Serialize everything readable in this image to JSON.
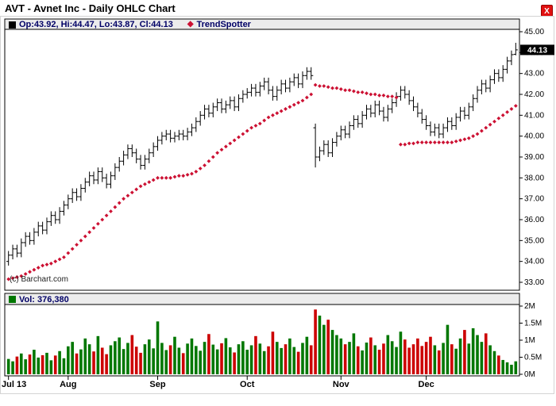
{
  "title": "AVT - Avnet Inc - Daily OHLC Chart",
  "close_button": "X",
  "legend": {
    "ohlc_label": "Op:43.92, Hi:44.47, Lo:43.87, Cl:44.13",
    "trend_label": "TrendSpotter",
    "diamond_glyph": "◆"
  },
  "volume_legend": {
    "label": "Vol: 376,380"
  },
  "copyright": "(c) Barchart.com",
  "colors": {
    "ohlc": "#000000",
    "trend": "#cc1133",
    "volume_up": "#007700",
    "volume_down": "#cc0000",
    "legend_text": "#000066",
    "last_price_bg": "#000000",
    "last_price_fg": "#ffffff",
    "close_button_bg": "#e01010"
  },
  "chart_data": {
    "type": "ohlc",
    "title": "AVT - Avnet Inc - Daily OHLC Chart",
    "y_axis": {
      "min": 33,
      "max": 45,
      "tick_step": 1,
      "tick_labels": [
        "45.00",
        "44.00",
        "43.00",
        "42.00",
        "41.00",
        "40.00",
        "39.00",
        "38.00",
        "37.00",
        "36.00",
        "35.00",
        "34.00",
        "33.00"
      ],
      "last_price": 44.13,
      "last_price_label": "44.13"
    },
    "volume_axis": {
      "max_millions": 2,
      "tick_values_millions": [
        2,
        1.5,
        1,
        0.5,
        0
      ],
      "tick_labels": [
        "2M",
        "1.5M",
        "1M",
        "0.5M",
        "0M"
      ]
    },
    "x_ticks": [
      {
        "label": "Jul 13",
        "index": 0
      },
      {
        "label": "Aug",
        "index": 14
      },
      {
        "label": "Sep",
        "index": 35
      },
      {
        "label": "Oct",
        "index": 56
      },
      {
        "label": "Nov",
        "index": 78
      },
      {
        "label": "Dec",
        "index": 98
      }
    ],
    "series": [
      {
        "name": "OHLC",
        "type": "ohlc",
        "bars_ohlc": [
          [
            34.0,
            34.5,
            33.8,
            34.3
          ],
          [
            34.3,
            34.8,
            34.1,
            34.6
          ],
          [
            34.6,
            34.8,
            34.2,
            34.4
          ],
          [
            34.4,
            35.1,
            34.2,
            34.9
          ],
          [
            34.9,
            35.4,
            34.7,
            35.2
          ],
          [
            35.2,
            35.4,
            34.8,
            35.0
          ],
          [
            35.0,
            35.6,
            34.8,
            35.4
          ],
          [
            35.4,
            35.9,
            35.2,
            35.7
          ],
          [
            35.7,
            35.9,
            35.3,
            35.5
          ],
          [
            35.5,
            36.1,
            35.3,
            35.9
          ],
          [
            35.9,
            36.4,
            35.7,
            36.2
          ],
          [
            36.2,
            36.4,
            35.8,
            36.0
          ],
          [
            36.0,
            36.6,
            35.8,
            36.4
          ],
          [
            36.4,
            36.9,
            36.2,
            36.7
          ],
          [
            36.7,
            37.2,
            36.5,
            37.0
          ],
          [
            37.0,
            37.5,
            36.8,
            37.3
          ],
          [
            37.3,
            37.5,
            36.9,
            37.1
          ],
          [
            37.1,
            37.7,
            36.9,
            37.5
          ],
          [
            37.5,
            38.0,
            37.3,
            37.8
          ],
          [
            37.8,
            38.3,
            37.6,
            38.1
          ],
          [
            38.1,
            38.3,
            37.7,
            37.9
          ],
          [
            37.9,
            38.5,
            37.7,
            38.3
          ],
          [
            38.3,
            38.5,
            37.8,
            38.0
          ],
          [
            38.0,
            38.2,
            37.5,
            37.7
          ],
          [
            37.7,
            38.3,
            37.5,
            38.1
          ],
          [
            38.1,
            38.7,
            37.9,
            38.5
          ],
          [
            38.5,
            39.0,
            38.3,
            38.8
          ],
          [
            38.8,
            39.3,
            38.6,
            39.1
          ],
          [
            39.1,
            39.6,
            38.9,
            39.4
          ],
          [
            39.4,
            39.6,
            39.0,
            39.2
          ],
          [
            39.2,
            39.4,
            38.7,
            38.9
          ],
          [
            38.9,
            39.1,
            38.4,
            38.6
          ],
          [
            38.6,
            39.1,
            38.4,
            38.9
          ],
          [
            38.9,
            39.4,
            38.7,
            39.2
          ],
          [
            39.2,
            39.7,
            39.0,
            39.5
          ],
          [
            39.5,
            40.0,
            39.3,
            39.8
          ],
          [
            39.8,
            40.2,
            39.6,
            40.0
          ],
          [
            40.0,
            40.3,
            39.8,
            40.1
          ],
          [
            40.1,
            40.3,
            39.7,
            39.9
          ],
          [
            39.9,
            40.2,
            39.7,
            40.0
          ],
          [
            40.0,
            40.3,
            39.8,
            40.1
          ],
          [
            40.1,
            40.3,
            39.8,
            40.0
          ],
          [
            40.0,
            40.4,
            39.8,
            40.2
          ],
          [
            40.2,
            40.6,
            40.0,
            40.4
          ],
          [
            40.4,
            40.9,
            40.2,
            40.7
          ],
          [
            40.7,
            41.2,
            40.5,
            41.0
          ],
          [
            41.0,
            41.5,
            40.8,
            41.3
          ],
          [
            41.3,
            41.5,
            40.9,
            41.1
          ],
          [
            41.1,
            41.6,
            40.9,
            41.4
          ],
          [
            41.4,
            41.8,
            41.2,
            41.6
          ],
          [
            41.6,
            41.8,
            41.1,
            41.3
          ],
          [
            41.3,
            41.7,
            41.1,
            41.5
          ],
          [
            41.5,
            41.9,
            41.3,
            41.7
          ],
          [
            41.7,
            41.9,
            41.2,
            41.4
          ],
          [
            41.4,
            42.0,
            41.2,
            41.8
          ],
          [
            41.8,
            42.2,
            41.6,
            42.0
          ],
          [
            42.0,
            42.3,
            41.8,
            42.1
          ],
          [
            42.1,
            42.5,
            41.9,
            42.3
          ],
          [
            42.3,
            42.5,
            41.9,
            42.1
          ],
          [
            42.1,
            42.6,
            41.9,
            42.4
          ],
          [
            42.4,
            42.8,
            42.2,
            42.6
          ],
          [
            42.6,
            42.8,
            42.0,
            42.2
          ],
          [
            42.2,
            42.4,
            41.7,
            41.9
          ],
          [
            41.9,
            42.4,
            41.7,
            42.2
          ],
          [
            42.2,
            42.7,
            42.0,
            42.5
          ],
          [
            42.5,
            42.7,
            42.1,
            42.3
          ],
          [
            42.3,
            42.8,
            42.1,
            42.6
          ],
          [
            42.6,
            43.0,
            42.4,
            42.8
          ],
          [
            42.8,
            43.0,
            42.3,
            42.5
          ],
          [
            42.5,
            43.1,
            42.3,
            42.9
          ],
          [
            42.9,
            43.3,
            42.7,
            43.1
          ],
          [
            43.1,
            43.3,
            42.7,
            42.9
          ],
          [
            40.4,
            40.6,
            38.5,
            39.0
          ],
          [
            39.0,
            39.5,
            38.8,
            39.3
          ],
          [
            39.3,
            39.8,
            39.1,
            39.6
          ],
          [
            39.6,
            39.8,
            39.0,
            39.2
          ],
          [
            39.2,
            39.9,
            39.0,
            39.7
          ],
          [
            39.7,
            40.2,
            39.5,
            40.0
          ],
          [
            40.0,
            40.5,
            39.8,
            40.3
          ],
          [
            40.3,
            40.5,
            39.9,
            40.1
          ],
          [
            40.1,
            40.7,
            39.9,
            40.5
          ],
          [
            40.5,
            41.0,
            40.3,
            40.8
          ],
          [
            40.8,
            41.0,
            40.4,
            40.6
          ],
          [
            40.6,
            41.2,
            40.4,
            41.0
          ],
          [
            41.0,
            41.5,
            40.8,
            41.3
          ],
          [
            41.3,
            41.5,
            40.9,
            41.1
          ],
          [
            41.1,
            41.7,
            40.9,
            41.5
          ],
          [
            41.5,
            41.7,
            41.0,
            41.2
          ],
          [
            41.2,
            41.4,
            40.7,
            40.9
          ],
          [
            40.9,
            41.5,
            40.7,
            41.3
          ],
          [
            41.3,
            41.8,
            41.1,
            41.6
          ],
          [
            41.6,
            42.1,
            41.4,
            41.9
          ],
          [
            41.9,
            42.4,
            41.7,
            42.2
          ],
          [
            42.2,
            42.4,
            41.8,
            42.0
          ],
          [
            42.0,
            42.2,
            41.5,
            41.7
          ],
          [
            41.7,
            41.9,
            41.2,
            41.4
          ],
          [
            41.4,
            41.6,
            40.9,
            41.1
          ],
          [
            41.1,
            41.3,
            40.6,
            40.8
          ],
          [
            40.8,
            41.0,
            40.3,
            40.5
          ],
          [
            40.5,
            40.7,
            40.0,
            40.2
          ],
          [
            40.2,
            40.6,
            40.0,
            40.4
          ],
          [
            40.4,
            40.6,
            39.9,
            40.1
          ],
          [
            40.1,
            40.6,
            39.9,
            40.4
          ],
          [
            40.4,
            40.9,
            40.2,
            40.7
          ],
          [
            40.7,
            40.9,
            40.3,
            40.5
          ],
          [
            40.5,
            41.1,
            40.3,
            40.9
          ],
          [
            40.9,
            41.4,
            40.7,
            41.2
          ],
          [
            41.2,
            41.4,
            40.8,
            41.0
          ],
          [
            41.0,
            41.6,
            40.8,
            41.4
          ],
          [
            41.4,
            42.0,
            41.2,
            41.8
          ],
          [
            41.8,
            42.4,
            41.6,
            42.2
          ],
          [
            42.2,
            42.7,
            42.0,
            42.5
          ],
          [
            42.5,
            42.7,
            42.1,
            42.3
          ],
          [
            42.3,
            42.9,
            42.1,
            42.7
          ],
          [
            42.7,
            43.2,
            42.5,
            43.0
          ],
          [
            43.0,
            43.2,
            42.6,
            42.8
          ],
          [
            42.8,
            43.4,
            42.6,
            43.2
          ],
          [
            43.2,
            43.8,
            43.0,
            43.6
          ],
          [
            43.6,
            44.1,
            43.4,
            43.9
          ],
          [
            43.92,
            44.47,
            43.87,
            44.13
          ]
        ]
      },
      {
        "name": "TrendSpotter",
        "type": "scatter",
        "values": [
          33.15,
          33.2,
          33.25,
          33.3,
          33.4,
          33.5,
          33.6,
          33.7,
          33.8,
          33.85,
          33.9,
          34.0,
          34.1,
          34.2,
          34.4,
          34.6,
          34.8,
          35.0,
          35.2,
          35.4,
          35.6,
          35.8,
          36.0,
          36.2,
          36.4,
          36.6,
          36.8,
          37.0,
          37.15,
          37.3,
          37.45,
          37.6,
          37.7,
          37.8,
          37.9,
          38.0,
          38.0,
          38.0,
          38.0,
          38.05,
          38.1,
          38.1,
          38.15,
          38.2,
          38.3,
          38.45,
          38.6,
          38.8,
          39.0,
          39.2,
          39.35,
          39.5,
          39.65,
          39.8,
          39.95,
          40.1,
          40.25,
          40.4,
          40.5,
          40.6,
          40.75,
          40.9,
          41.0,
          41.1,
          41.2,
          41.3,
          41.4,
          41.5,
          41.6,
          41.7,
          41.85,
          42.0,
          42.45,
          42.4,
          42.4,
          42.35,
          42.3,
          42.3,
          42.25,
          42.2,
          42.2,
          42.15,
          42.1,
          42.1,
          42.05,
          42.0,
          42.0,
          41.95,
          41.95,
          41.9,
          41.9,
          41.85,
          39.6,
          39.6,
          39.65,
          39.65,
          39.7,
          39.7,
          39.7,
          39.7,
          39.7,
          39.7,
          39.7,
          39.7,
          39.7,
          39.75,
          39.8,
          39.85,
          39.9,
          40.0,
          40.1,
          40.25,
          40.4,
          40.55,
          40.7,
          40.85,
          41.0,
          41.15,
          41.3,
          41.45
        ]
      },
      {
        "name": "Volume",
        "type": "bar",
        "values_millions": [
          0.45,
          0.38,
          0.52,
          0.61,
          0.44,
          0.58,
          0.72,
          0.49,
          0.56,
          0.63,
          0.41,
          0.55,
          0.68,
          0.47,
          0.82,
          0.95,
          0.61,
          0.73,
          1.05,
          0.88,
          0.67,
          1.12,
          0.78,
          0.59,
          0.85,
          0.97,
          1.08,
          0.74,
          0.92,
          1.15,
          0.81,
          0.63,
          0.88,
          1.02,
          0.76,
          1.55,
          0.92,
          0.71,
          0.85,
          1.1,
          0.78,
          0.62,
          0.9,
          1.05,
          0.83,
          0.69,
          0.95,
          1.18,
          0.87,
          0.73,
          0.91,
          1.06,
          0.79,
          0.64,
          0.88,
          0.97,
          0.72,
          0.85,
          1.12,
          0.9,
          0.68,
          0.82,
          1.25,
          0.95,
          0.77,
          0.88,
          1.05,
          0.8,
          0.66,
          0.92,
          1.1,
          0.85,
          1.9,
          1.72,
          1.45,
          1.6,
          1.3,
          1.15,
          1.05,
          0.88,
          0.95,
          1.2,
          0.82,
          0.7,
          0.93,
          1.08,
          0.85,
          0.72,
          0.9,
          1.15,
          0.97,
          0.8,
          1.25,
          1.02,
          0.78,
          0.88,
          1.05,
          0.83,
          0.95,
          1.1,
          0.85,
          0.7,
          0.92,
          1.45,
          0.88,
          0.75,
          1.05,
          1.3,
          0.9,
          1.35,
          1.15,
          0.95,
          1.2,
          0.85,
          0.68,
          0.55,
          0.42,
          0.35,
          0.28,
          0.38
        ]
      }
    ]
  }
}
